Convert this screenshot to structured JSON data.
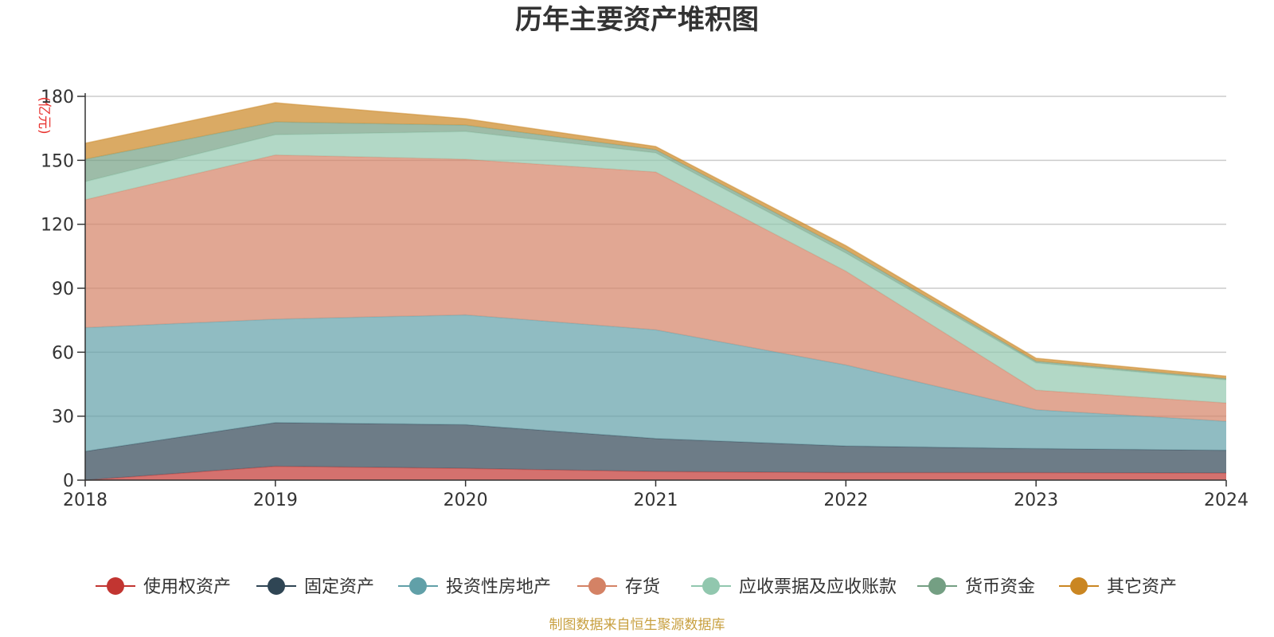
{
  "chart_data": {
    "type": "area",
    "stacked": true,
    "title": "历年主要资产堆积图",
    "unit_label": "(亿元)",
    "x": [
      "2018",
      "2019",
      "2020",
      "2021",
      "2022",
      "2023",
      "2024"
    ],
    "ylim": [
      0,
      180
    ],
    "yticks": [
      0,
      30,
      60,
      90,
      120,
      150,
      180
    ],
    "grid": true,
    "legend_position": "bottom",
    "series": [
      {
        "name": "使用权资产",
        "color": "#c23531",
        "values": [
          0,
          6.5,
          5.5,
          4,
          3.5,
          3.5,
          3.3
        ]
      },
      {
        "name": "固定资产",
        "color": "#2f4554",
        "values": [
          13.5,
          20.5,
          20.5,
          15.5,
          12.5,
          11.3,
          10.7
        ]
      },
      {
        "name": "投资性房地产",
        "color": "#61a0a8",
        "values": [
          58,
          48.5,
          51.5,
          51,
          38,
          18.2,
          13.6
        ]
      },
      {
        "name": "存货",
        "color": "#d48265",
        "values": [
          60,
          77,
          73,
          74,
          44,
          9.2,
          8.6
        ]
      },
      {
        "name": "应收票据及应收账款",
        "color": "#91c7ae",
        "values": [
          8.5,
          9.5,
          13,
          9,
          8.5,
          12.8,
          10.8
        ]
      },
      {
        "name": "货币资金",
        "color": "#749f83",
        "values": [
          10.5,
          6,
          3,
          1.5,
          1.5,
          0.8,
          0.6
        ]
      },
      {
        "name": "其它资产",
        "color": "#ca8622",
        "values": [
          7.5,
          9,
          3,
          1.5,
          2,
          1.4,
          1.2
        ]
      }
    ],
    "source": "制图数据来自恒生聚源数据库"
  }
}
